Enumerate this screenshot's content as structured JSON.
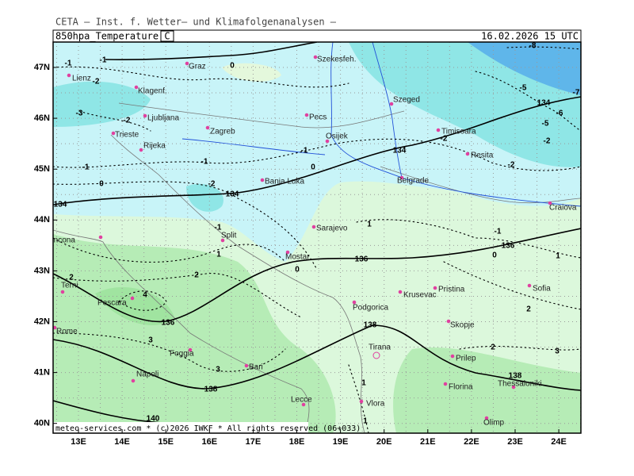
{
  "header": {
    "title": "CETA – Inst. f. Wetter– und Klimafolgenanalysen –",
    "field": "850hpa_Temperature",
    "unit": "C",
    "valid": "16.02.2026 15 UTC"
  },
  "axes": {
    "lat_labels": [
      "47N",
      "46N",
      "45N",
      "44N",
      "43N",
      "42N",
      "41N",
      "40N"
    ],
    "lon_labels": [
      "13E",
      "14E",
      "15E",
      "16E",
      "17E",
      "18E",
      "19E",
      "20E",
      "21E",
      "22E",
      "23E",
      "24E"
    ]
  },
  "cities": [
    "Graz",
    "Szekesfeh.",
    "Lienz",
    "Klagenf.",
    "Szeged",
    "Ljubljana",
    "Pecs",
    "Zagreb",
    "Timisoara",
    "Trieste",
    "Osijek",
    "Rijeka",
    "Resita",
    "Banja Luka",
    "Belgrade",
    "Craiova",
    "Sarajevo",
    "Ancona",
    "Split",
    "Mostar",
    "Pristina",
    "Terni",
    "Krusevac",
    "Sofia",
    "Pescara",
    "Podgorica",
    "Skopje",
    "Rome",
    "Foggia",
    "Tirana",
    "Prilep",
    "Bari",
    "Napoli",
    "Florina",
    "Thessaloniki",
    "Vlora",
    "Lecce",
    "Olimp"
  ],
  "temperature_labels": [
    "-8",
    "-7",
    "-6",
    "-5",
    "-5",
    "-2",
    "-2",
    "-3",
    "-2",
    "-1",
    "-1",
    "-2",
    "0",
    "-1",
    "0",
    "-1",
    "0",
    "-1",
    "-2",
    "-2",
    "-1",
    "0",
    "-1",
    "1",
    "1",
    "0",
    "2",
    "2",
    "1",
    "2",
    "4",
    "3",
    "3",
    "3",
    "2",
    "1",
    "1"
  ],
  "height_labels": [
    "134",
    "134",
    "134",
    "134",
    "136",
    "136",
    "136",
    "138",
    "138",
    "138",
    "140"
  ],
  "footer": "meteo-services.com * (c)2026 IWKF * All rights reserved (06+033)"
}
